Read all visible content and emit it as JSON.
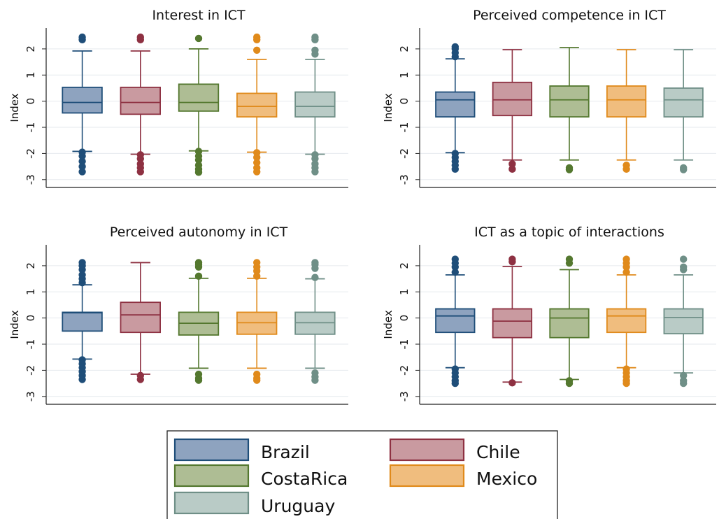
{
  "legend": {
    "position": "bottom-center",
    "entries": [
      "Brazil",
      "Chile",
      "CostaRica",
      "Mexico",
      "Uruguay"
    ]
  },
  "colors": {
    "Brazil": {
      "fill": "#8ea3bf",
      "stroke": "#1f4e79"
    },
    "Chile": {
      "fill": "#c99aa0",
      "stroke": "#8e3142"
    },
    "CostaRica": {
      "fill": "#aebd94",
      "stroke": "#54782f"
    },
    "Mexico": {
      "fill": "#f0bd7e",
      "stroke": "#e08a1b"
    },
    "Uruguay": {
      "fill": "#b9cbc6",
      "stroke": "#6f8f87"
    }
  },
  "chart_data": [
    {
      "type": "box",
      "title": "Interest in ICT",
      "ylabel": "Index",
      "yticks": [
        -3,
        -2,
        -1,
        0,
        1,
        2
      ],
      "ylim": [
        -3.3,
        2.8
      ],
      "grid": true,
      "categories": [
        "Brazil",
        "Chile",
        "CostaRica",
        "Mexico",
        "Uruguay"
      ],
      "boxes": [
        {
          "name": "Brazil",
          "whisker_low": -1.92,
          "q1": -0.45,
          "median": -0.05,
          "q3": 0.53,
          "whisker_high": 1.92,
          "outliers_low": [
            -1.95,
            -2.1,
            -2.3,
            -2.5,
            -2.7
          ],
          "outliers_high": [
            2.35,
            2.45
          ]
        },
        {
          "name": "Chile",
          "whisker_low": -2.03,
          "q1": -0.5,
          "median": -0.05,
          "q3": 0.53,
          "whisker_high": 1.92,
          "outliers_low": [
            -2.05,
            -2.2,
            -2.4,
            -2.55,
            -2.7
          ],
          "outliers_high": [
            2.35,
            2.45
          ]
        },
        {
          "name": "CostaRica",
          "whisker_low": -1.9,
          "q1": -0.38,
          "median": -0.05,
          "q3": 0.65,
          "whisker_high": 2.0,
          "outliers_low": [
            -1.92,
            -2.1,
            -2.25,
            -2.45,
            -2.6,
            -2.72
          ],
          "outliers_high": [
            2.4
          ]
        },
        {
          "name": "Mexico",
          "whisker_low": -1.95,
          "q1": -0.6,
          "median": -0.2,
          "q3": 0.3,
          "whisker_high": 1.6,
          "outliers_low": [
            -1.97,
            -2.15,
            -2.35,
            -2.55,
            -2.7
          ],
          "outliers_high": [
            1.95,
            2.35,
            2.45
          ]
        },
        {
          "name": "Uruguay",
          "whisker_low": -2.03,
          "q1": -0.6,
          "median": -0.2,
          "q3": 0.35,
          "whisker_high": 1.6,
          "outliers_low": [
            -2.05,
            -2.2,
            -2.4,
            -2.55,
            -2.7
          ],
          "outliers_high": [
            1.8,
            1.95,
            2.35,
            2.45
          ]
        }
      ]
    },
    {
      "type": "box",
      "title": "Perceived competence in ICT",
      "ylabel": "Index",
      "yticks": [
        -3,
        -2,
        -1,
        0,
        1,
        2
      ],
      "ylim": [
        -3.3,
        2.8
      ],
      "grid": true,
      "categories": [
        "Brazil",
        "Chile",
        "CostaRica",
        "Mexico",
        "Uruguay"
      ],
      "boxes": [
        {
          "name": "Brazil",
          "whisker_low": -1.97,
          "q1": -0.6,
          "median": 0.05,
          "q3": 0.35,
          "whisker_high": 1.62,
          "outliers_low": [
            -2.0,
            -2.15,
            -2.3,
            -2.45,
            -2.6
          ],
          "outliers_high": [
            1.7,
            1.85,
            2.0,
            2.08
          ]
        },
        {
          "name": "Chile",
          "whisker_low": -2.25,
          "q1": -0.55,
          "median": 0.05,
          "q3": 0.72,
          "whisker_high": 1.97,
          "outliers_low": [
            -2.4,
            -2.6
          ],
          "outliers_high": []
        },
        {
          "name": "CostaRica",
          "whisker_low": -2.25,
          "q1": -0.6,
          "median": 0.05,
          "q3": 0.58,
          "whisker_high": 2.05,
          "outliers_low": [
            -2.55,
            -2.62
          ],
          "outliers_high": []
        },
        {
          "name": "Mexico",
          "whisker_low": -2.25,
          "q1": -0.6,
          "median": 0.05,
          "q3": 0.58,
          "whisker_high": 1.97,
          "outliers_low": [
            -2.45,
            -2.6
          ],
          "outliers_high": []
        },
        {
          "name": "Uruguay",
          "whisker_low": -2.25,
          "q1": -0.6,
          "median": 0.05,
          "q3": 0.5,
          "whisker_high": 1.97,
          "outliers_low": [
            -2.55,
            -2.62
          ],
          "outliers_high": []
        }
      ]
    },
    {
      "type": "box",
      "title": "Perceived autonomy in ICT",
      "ylabel": "Index",
      "yticks": [
        -3,
        -2,
        -1,
        0,
        1,
        2
      ],
      "ylim": [
        -3.3,
        2.8
      ],
      "grid": true,
      "categories": [
        "Brazil",
        "Chile",
        "CostaRica",
        "Mexico",
        "Uruguay"
      ],
      "boxes": [
        {
          "name": "Brazil",
          "whisker_low": -1.57,
          "q1": -0.5,
          "median": 0.2,
          "q3": 0.22,
          "whisker_high": 1.27,
          "outliers_low": [
            -1.6,
            -1.75,
            -1.9,
            -2.05,
            -2.2,
            -2.35
          ],
          "outliers_high": [
            1.35,
            1.5,
            1.65,
            1.85,
            2.0,
            2.12
          ]
        },
        {
          "name": "Chile",
          "whisker_low": -2.15,
          "q1": -0.55,
          "median": 0.12,
          "q3": 0.6,
          "whisker_high": 2.12,
          "outliers_low": [
            -2.2,
            -2.35
          ],
          "outliers_high": []
        },
        {
          "name": "CostaRica",
          "whisker_low": -1.92,
          "q1": -0.65,
          "median": -0.2,
          "q3": 0.22,
          "whisker_high": 1.52,
          "outliers_low": [
            -2.15,
            -2.3,
            -2.38
          ],
          "outliers_high": [
            1.6,
            1.95,
            2.05,
            2.12
          ]
        },
        {
          "name": "Mexico",
          "whisker_low": -1.92,
          "q1": -0.62,
          "median": -0.18,
          "q3": 0.22,
          "whisker_high": 1.52,
          "outliers_low": [
            -2.15,
            -2.3,
            -2.38
          ],
          "outliers_high": [
            1.6,
            1.8,
            1.95,
            2.12
          ]
        },
        {
          "name": "Uruguay",
          "whisker_low": -1.92,
          "q1": -0.62,
          "median": -0.18,
          "q3": 0.22,
          "whisker_high": 1.5,
          "outliers_low": [
            -2.1,
            -2.25,
            -2.38
          ],
          "outliers_high": [
            1.55,
            1.9,
            2.05,
            2.12
          ]
        }
      ]
    },
    {
      "type": "box",
      "title": "ICT as a topic of interactions",
      "ylabel": "Index",
      "yticks": [
        -3,
        -2,
        -1,
        0,
        1,
        2
      ],
      "ylim": [
        -3.3,
        2.8
      ],
      "grid": true,
      "categories": [
        "Brazil",
        "Chile",
        "CostaRica",
        "Mexico",
        "Uruguay"
      ],
      "boxes": [
        {
          "name": "Brazil",
          "whisker_low": -1.9,
          "q1": -0.55,
          "median": 0.08,
          "q3": 0.35,
          "whisker_high": 1.65,
          "outliers_low": [
            -1.95,
            -2.1,
            -2.25,
            -2.4,
            -2.5
          ],
          "outliers_high": [
            1.75,
            1.95,
            2.1,
            2.25
          ]
        },
        {
          "name": "Chile",
          "whisker_low": -2.45,
          "q1": -0.75,
          "median": -0.12,
          "q3": 0.35,
          "whisker_high": 1.97,
          "outliers_low": [
            -2.48
          ],
          "outliers_high": [
            2.15,
            2.25
          ]
        },
        {
          "name": "CostaRica",
          "whisker_low": -2.35,
          "q1": -0.75,
          "median": 0.0,
          "q3": 0.35,
          "whisker_high": 1.85,
          "outliers_low": [
            -2.4,
            -2.5
          ],
          "outliers_high": [
            2.1,
            2.25
          ]
        },
        {
          "name": "Mexico",
          "whisker_low": -1.9,
          "q1": -0.55,
          "median": 0.08,
          "q3": 0.35,
          "whisker_high": 1.65,
          "outliers_low": [
            -1.95,
            -2.1,
            -2.25,
            -2.4,
            -2.5
          ],
          "outliers_high": [
            1.75,
            1.95,
            2.1,
            2.25
          ]
        },
        {
          "name": "Uruguay",
          "whisker_low": -2.1,
          "q1": -0.6,
          "median": 0.02,
          "q3": 0.35,
          "whisker_high": 1.65,
          "outliers_low": [
            -2.2,
            -2.4,
            -2.5
          ],
          "outliers_high": [
            1.85,
            1.95,
            2.25
          ]
        }
      ]
    }
  ]
}
